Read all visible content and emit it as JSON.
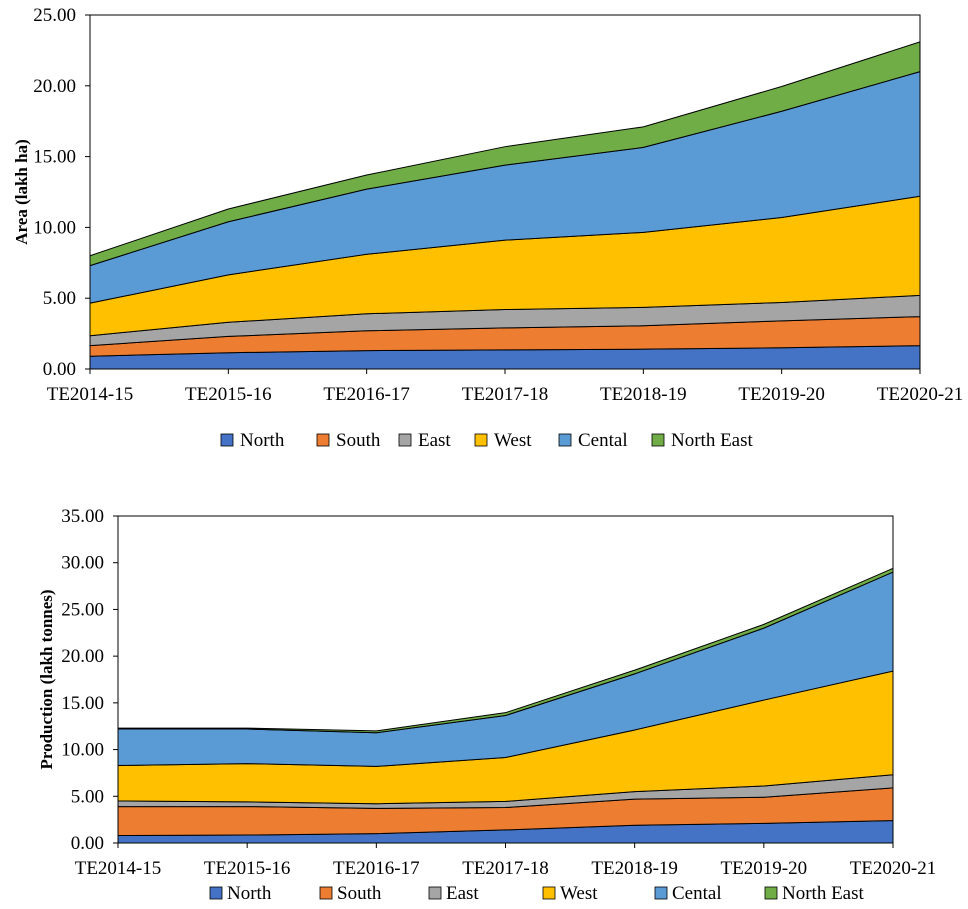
{
  "colors": {
    "North": "#4472C4",
    "South": "#ED7D31",
    "East": "#A5A5A5",
    "West": "#FFC000",
    "Cental": "#5B9BD5",
    "North East": "#70AD47"
  },
  "chart_data": [
    {
      "type": "area",
      "stacked": true,
      "ylabel": "Area (lakh ha)",
      "ylim": [
        0,
        25
      ],
      "yticks": [
        "0.00",
        "5.00",
        "10.00",
        "15.00",
        "20.00",
        "25.00"
      ],
      "categories": [
        "TE2014-15",
        "TE2015-16",
        "TE2016-17",
        "TE2017-18",
        "TE2018-19",
        "TE2019-20",
        "TE2020-21"
      ],
      "legend": "bottom",
      "series": [
        {
          "name": "North",
          "values": [
            0.9,
            1.15,
            1.3,
            1.35,
            1.4,
            1.5,
            1.65
          ]
        },
        {
          "name": "South",
          "values": [
            0.75,
            1.15,
            1.4,
            1.55,
            1.65,
            1.9,
            2.05
          ]
        },
        {
          "name": "East",
          "values": [
            0.7,
            1.0,
            1.2,
            1.3,
            1.3,
            1.3,
            1.5
          ]
        },
        {
          "name": "West",
          "values": [
            2.3,
            3.35,
            4.2,
            4.9,
            5.3,
            6.0,
            7.0
          ]
        },
        {
          "name": "Cental",
          "values": [
            2.65,
            3.75,
            4.6,
            5.3,
            6.0,
            7.5,
            8.8
          ]
        },
        {
          "name": "North East",
          "values": [
            0.7,
            0.9,
            1.0,
            1.3,
            1.45,
            1.75,
            2.1
          ]
        }
      ]
    },
    {
      "type": "area",
      "stacked": true,
      "ylabel": "Production (lakh tonnes)",
      "ylim": [
        0,
        35
      ],
      "yticks": [
        "0.00",
        "5.00",
        "10.00",
        "15.00",
        "20.00",
        "25.00",
        "30.00",
        "35.00"
      ],
      "categories": [
        "TE2014-15",
        "TE2015-16",
        "TE2016-17",
        "TE2017-18",
        "TE2018-19",
        "TE2019-20",
        "TE2020-21"
      ],
      "legend": "bottom",
      "series": [
        {
          "name": "North",
          "values": [
            0.8,
            0.85,
            1.0,
            1.4,
            1.9,
            2.1,
            2.4
          ]
        },
        {
          "name": "South",
          "values": [
            3.1,
            3.05,
            2.7,
            2.4,
            2.8,
            2.8,
            3.5
          ]
        },
        {
          "name": "East",
          "values": [
            0.6,
            0.5,
            0.5,
            0.65,
            0.8,
            1.2,
            1.4
          ]
        },
        {
          "name": "West",
          "values": [
            3.8,
            4.1,
            4.0,
            4.7,
            6.6,
            9.2,
            11.1
          ]
        },
        {
          "name": "Cental",
          "values": [
            3.9,
            3.7,
            3.6,
            4.5,
            6.0,
            7.7,
            10.6
          ]
        },
        {
          "name": "North East",
          "values": [
            0.1,
            0.1,
            0.2,
            0.3,
            0.4,
            0.4,
            0.4
          ]
        }
      ]
    }
  ]
}
